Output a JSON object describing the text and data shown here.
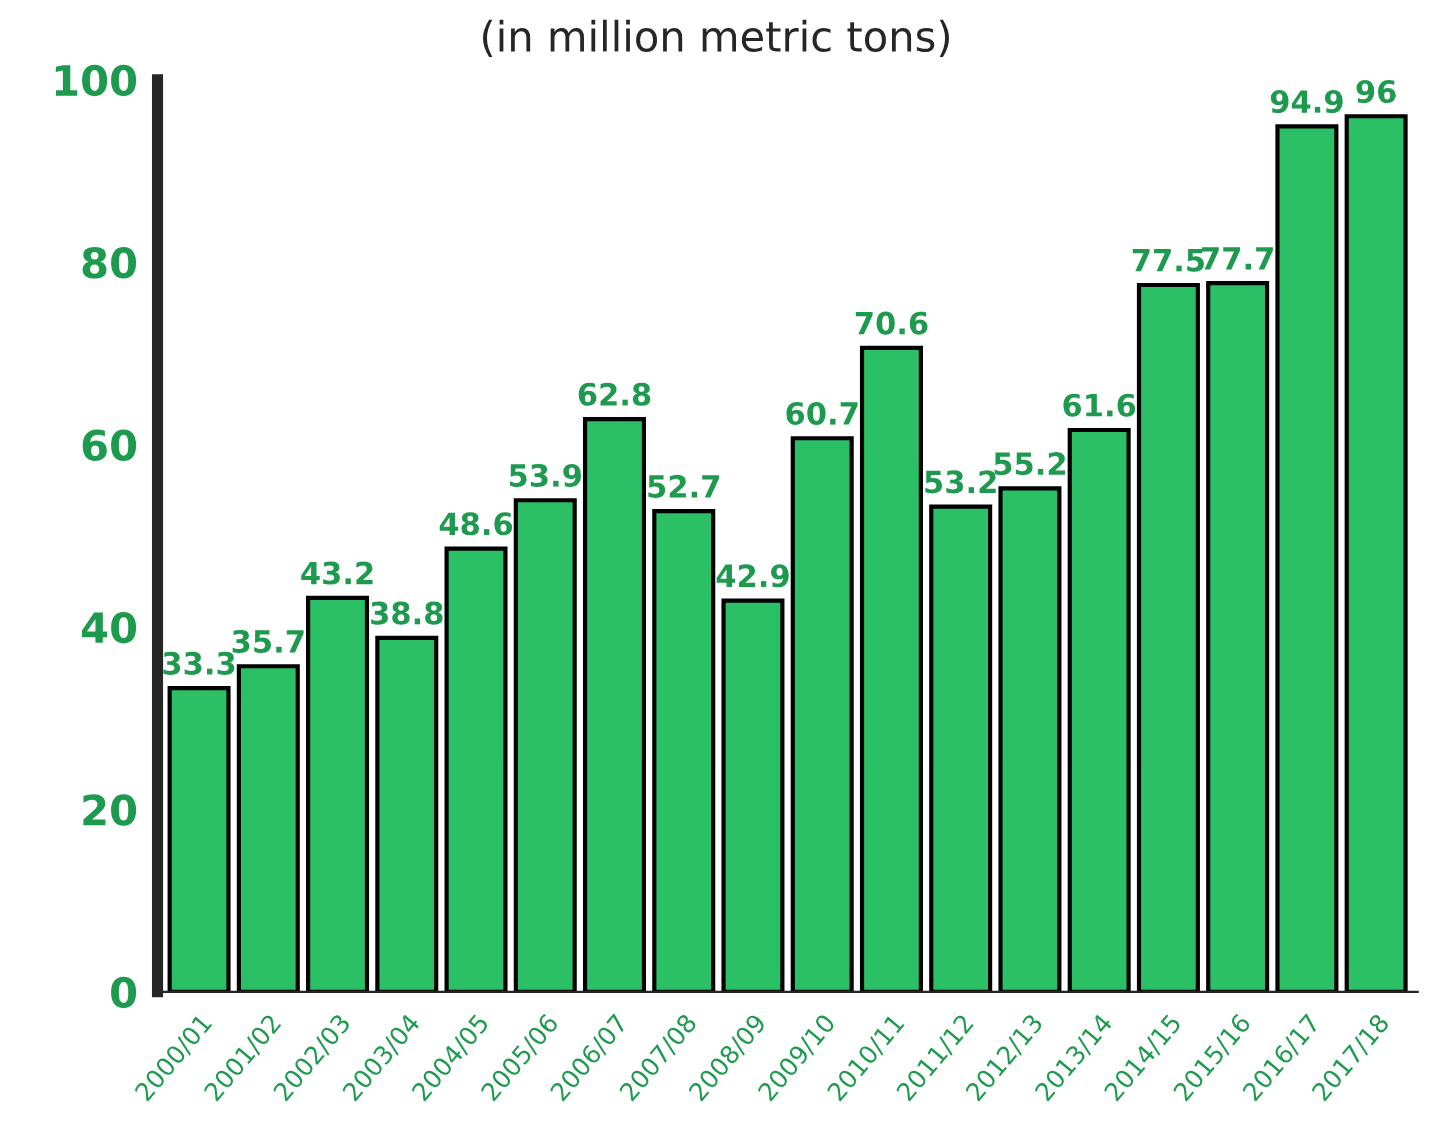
{
  "chart_data": {
    "type": "bar",
    "subtitle": "(in million metric tons)",
    "categories": [
      "2000/01",
      "2001/02",
      "2002/03",
      "2003/04",
      "2004/05",
      "2005/06",
      "2006/07",
      "2007/08",
      "2008/09",
      "2009/10",
      "2010/11",
      "2011/12",
      "2012/13",
      "2013/14",
      "2014/15",
      "2015/16",
      "2016/17",
      "2017/18"
    ],
    "values": [
      33.3,
      35.7,
      43.2,
      38.8,
      48.6,
      53.9,
      62.8,
      52.7,
      42.9,
      60.7,
      70.6,
      53.2,
      55.2,
      61.6,
      77.5,
      77.7,
      94.9,
      96
    ],
    "color": "#2bbf66",
    "ylim": [
      0,
      100
    ],
    "yticks": [
      0,
      20,
      40,
      60,
      80,
      100
    ],
    "data_labels": true,
    "grid": false,
    "legend": false
  }
}
